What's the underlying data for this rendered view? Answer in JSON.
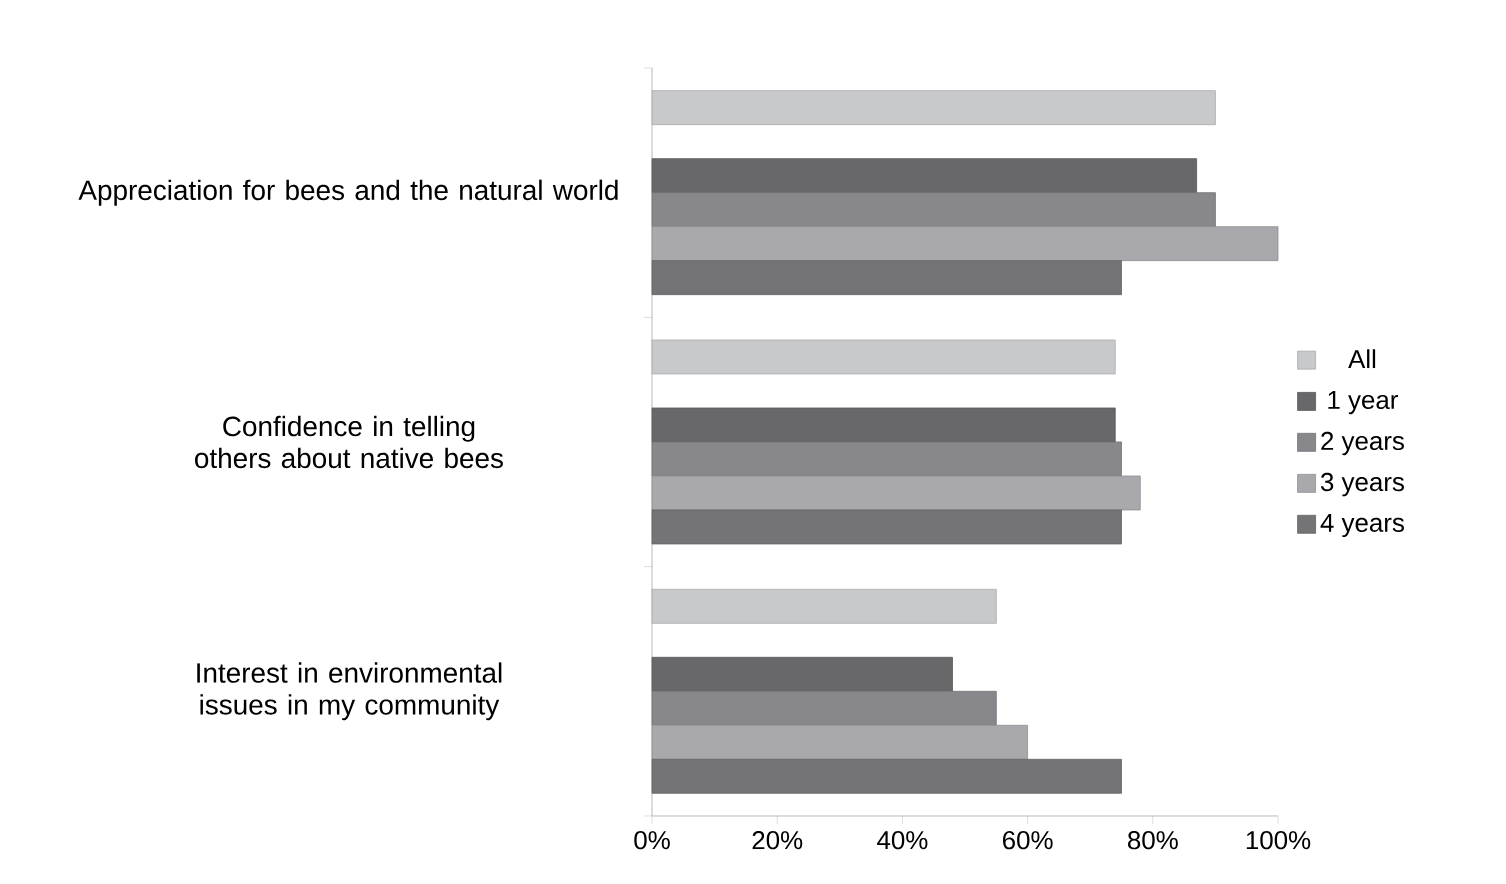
{
  "chart_data": {
    "type": "bar",
    "orientation": "horizontal",
    "categories": [
      "Appreciation for bees and the natural world",
      "Confidence in telling others about native bees",
      "Interest in environmental issues in my community"
    ],
    "series": [
      {
        "name": "All",
        "color": "#c8c9cb",
        "values": [
          90,
          74,
          55
        ]
      },
      {
        "name": "1 year",
        "color": "#68686a",
        "values": [
          87,
          74,
          48
        ]
      },
      {
        "name": "2 years",
        "color": "#88878b",
        "values": [
          90,
          75,
          55
        ]
      },
      {
        "name": "3 years",
        "color": "#a9a8ac",
        "values": [
          100,
          78,
          60
        ]
      },
      {
        "name": "4 years",
        "color": "#747476",
        "values": [
          75,
          75,
          75
        ]
      }
    ],
    "xlim": [
      0,
      100
    ],
    "xticks": [
      {
        "value": 0,
        "label": "0%"
      },
      {
        "value": 20,
        "label": "20%"
      },
      {
        "value": 40,
        "label": "40%"
      },
      {
        "value": 60,
        "label": "60%"
      },
      {
        "value": 80,
        "label": "80%"
      },
      {
        "value": 100,
        "label": "100%"
      }
    ],
    "grid": false,
    "legend": "right"
  }
}
